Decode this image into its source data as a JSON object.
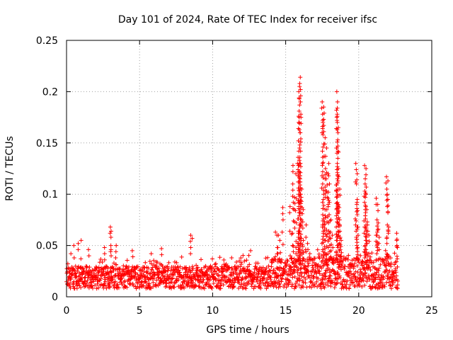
{
  "chart_data": {
    "type": "scatter",
    "title": "Day 101 of 2024, Rate Of TEC Index for receiver ifsc",
    "xlabel": "GPS time / hours",
    "ylabel": "ROTI / TECUs",
    "xlim": [
      0,
      25
    ],
    "ylim": [
      0,
      0.25
    ],
    "x_ticks": [
      0,
      5,
      10,
      15,
      20,
      25
    ],
    "x_tick_labels": [
      "0",
      "5",
      "10",
      "15",
      "20",
      "25"
    ],
    "y_ticks": [
      0,
      0.05,
      0.1,
      0.15,
      0.2,
      0.25
    ],
    "y_tick_labels": [
      "0",
      "0.05",
      "0.1",
      "0.15",
      "0.2",
      "0.25"
    ],
    "grid": true,
    "marker": "+",
    "color": "#ff0000",
    "x_range_observed": [
      0,
      22.7
    ],
    "baseline_band": [
      0.008,
      0.03
    ],
    "series": [
      {
        "points": [
          [
            0.3,
            0.042
          ],
          [
            0.5,
            0.05
          ],
          [
            0.8,
            0.052
          ],
          [
            1.0,
            0.055
          ],
          [
            1.5,
            0.046
          ],
          [
            2.6,
            0.048
          ],
          [
            3.0,
            0.068
          ],
          [
            3.05,
            0.064
          ],
          [
            3.4,
            0.05
          ],
          [
            4.5,
            0.045
          ],
          [
            5.8,
            0.042
          ],
          [
            6.5,
            0.047
          ],
          [
            8.5,
            0.06
          ],
          [
            8.6,
            0.057
          ],
          [
            12.6,
            0.045
          ],
          [
            14.3,
            0.063
          ],
          [
            14.4,
            0.06
          ],
          [
            14.5,
            0.06
          ],
          [
            14.6,
            0.055
          ],
          [
            14.8,
            0.087
          ],
          [
            15.3,
            0.088
          ],
          [
            15.4,
            0.061
          ],
          [
            15.5,
            0.128
          ],
          [
            15.6,
            0.097
          ],
          [
            15.7,
            0.12
          ],
          [
            15.9,
            0.17
          ],
          [
            15.9,
            0.2
          ],
          [
            15.95,
            0.205
          ],
          [
            16.0,
            0.214
          ],
          [
            16.05,
            0.175
          ],
          [
            16.0,
            0.16
          ],
          [
            15.9,
            0.142
          ],
          [
            15.85,
            0.136
          ],
          [
            16.0,
            0.13
          ],
          [
            16.1,
            0.105
          ],
          [
            16.2,
            0.085
          ],
          [
            16.4,
            0.07
          ],
          [
            16.5,
            0.052
          ],
          [
            17.5,
            0.19
          ],
          [
            17.6,
            0.185
          ],
          [
            17.55,
            0.17
          ],
          [
            17.7,
            0.155
          ],
          [
            17.8,
            0.145
          ],
          [
            17.7,
            0.115
          ],
          [
            17.6,
            0.1
          ],
          [
            17.7,
            0.085
          ],
          [
            17.8,
            0.065
          ],
          [
            17.9,
            0.12
          ],
          [
            17.95,
            0.13
          ],
          [
            18.0,
            0.11
          ],
          [
            18.1,
            0.075
          ],
          [
            18.2,
            0.06
          ],
          [
            18.5,
            0.2
          ],
          [
            18.55,
            0.19
          ],
          [
            18.5,
            0.175
          ],
          [
            18.6,
            0.165
          ],
          [
            18.5,
            0.145
          ],
          [
            18.6,
            0.125
          ],
          [
            18.7,
            0.105
          ],
          [
            18.6,
            0.09
          ],
          [
            18.7,
            0.07
          ],
          [
            18.8,
            0.055
          ],
          [
            19.8,
            0.13
          ],
          [
            19.9,
            0.12
          ],
          [
            19.85,
            0.11
          ],
          [
            19.9,
            0.095
          ],
          [
            19.9,
            0.08
          ],
          [
            19.95,
            0.06
          ],
          [
            20.4,
            0.128
          ],
          [
            20.5,
            0.125
          ],
          [
            20.45,
            0.115
          ],
          [
            20.5,
            0.1
          ],
          [
            20.55,
            0.085
          ],
          [
            20.6,
            0.07
          ],
          [
            20.7,
            0.06
          ],
          [
            21.2,
            0.096
          ],
          [
            21.3,
            0.09
          ],
          [
            21.25,
            0.075
          ],
          [
            21.3,
            0.065
          ],
          [
            21.4,
            0.058
          ],
          [
            21.9,
            0.117
          ],
          [
            22.0,
            0.113
          ],
          [
            21.95,
            0.1
          ],
          [
            22.0,
            0.082
          ],
          [
            22.05,
            0.068
          ],
          [
            22.6,
            0.062
          ],
          [
            22.6,
            0.055
          ],
          [
            22.65,
            0.048
          ]
        ]
      }
    ]
  }
}
